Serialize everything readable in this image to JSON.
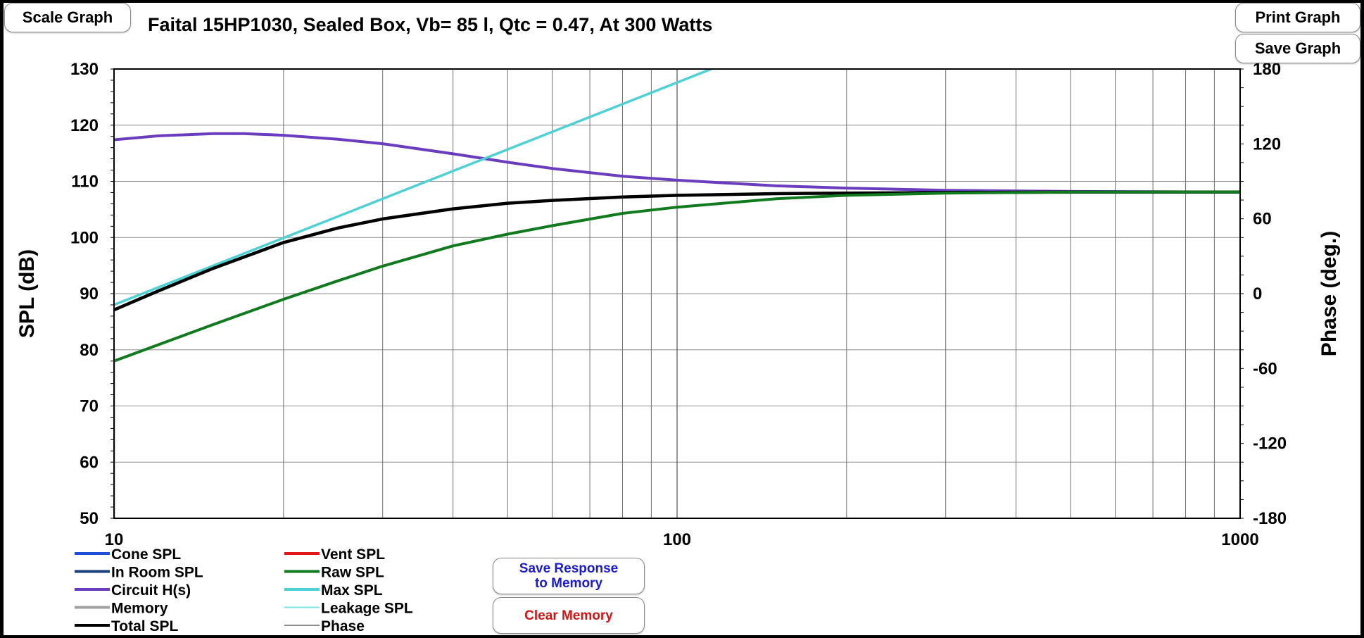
{
  "toolbar": {
    "scale_graph": "Scale Graph",
    "print_graph": "Print Graph",
    "save_graph": "Save Graph",
    "save_response_line1": "Save Response",
    "save_response_line2": "to Memory",
    "clear_memory": "Clear Memory",
    "save_response_color": "#1a1ad0",
    "clear_memory_color": "#d41414"
  },
  "chart_data": {
    "type": "line",
    "title": "Faital 15HP1030,  Sealed Box, Vb= 85 l,  Qtc = 0.47,  At 300 Watts",
    "xlabel": "",
    "ylabel": "SPL (dB)",
    "y2label": "Phase (deg.)",
    "xscale": "log",
    "xlim": [
      10,
      1000
    ],
    "ylim": [
      50,
      130
    ],
    "y2lim": [
      -180,
      180
    ],
    "x_ticks": [
      "10",
      "100",
      "1000"
    ],
    "y_ticks": [
      50,
      60,
      70,
      80,
      90,
      100,
      110,
      120,
      130
    ],
    "y2_ticks": [
      -180,
      -120,
      -60,
      0,
      60,
      120,
      180
    ],
    "grid": true,
    "legend_placement": "bottom-left",
    "legend": [
      {
        "name": "Cone SPL",
        "color": "#1e4fd8"
      },
      {
        "name": "Vent SPL",
        "color": "#e01818"
      },
      {
        "name": "In Room SPL",
        "color": "#1a3f7a"
      },
      {
        "name": "Raw SPL",
        "color": "#117a1f"
      },
      {
        "name": "Circuit H(s)",
        "color": "#6a3dbf"
      },
      {
        "name": "Max SPL",
        "color": "#4fd0d3"
      },
      {
        "name": "Memory",
        "color": "#a0a0a0"
      },
      {
        "name": "Leakage SPL",
        "color": "#7ee3e6"
      },
      {
        "name": "Total SPL",
        "color": "#000000"
      },
      {
        "name": "Phase",
        "color": "#8e8e8e"
      }
    ],
    "series": [
      {
        "name": "Circuit H(s)",
        "color": "#6a3dbf",
        "x": [
          10,
          12,
          15,
          17,
          20,
          25,
          30,
          40,
          50,
          60,
          80,
          100,
          150,
          200,
          300,
          500,
          1000
        ],
        "y": [
          117.4,
          118.1,
          118.5,
          118.5,
          118.2,
          117.5,
          116.7,
          114.9,
          113.4,
          112.3,
          110.9,
          110.2,
          109.2,
          108.8,
          108.4,
          108.2,
          108.1
        ]
      },
      {
        "name": "Max SPL",
        "color": "#4fd0d3",
        "x": [
          10,
          115
        ],
        "y": [
          88.0,
          130.0
        ]
      },
      {
        "name": "Total SPL",
        "color": "#000000",
        "x": [
          10,
          12,
          15,
          20,
          25,
          30,
          40,
          50,
          60,
          80,
          100,
          150,
          200,
          300,
          500,
          1000
        ],
        "y": [
          87.1,
          90.5,
          94.5,
          99.1,
          101.7,
          103.3,
          105.1,
          106.1,
          106.6,
          107.2,
          107.5,
          107.8,
          107.9,
          108.0,
          108.1,
          108.1
        ]
      },
      {
        "name": "Raw SPL",
        "color": "#117a1f",
        "x": [
          10,
          15,
          20,
          25,
          30,
          40,
          50,
          60,
          80,
          100,
          150,
          200,
          300,
          500,
          1000
        ],
        "y": [
          78.0,
          84.5,
          89.0,
          92.3,
          94.9,
          98.5,
          100.6,
          102.1,
          104.3,
          105.4,
          106.9,
          107.5,
          107.9,
          108.1,
          108.1
        ]
      },
      {
        "name": "Memory",
        "color": "#a0a0a0",
        "x": [
          10,
          10
        ],
        "y": [
          50,
          80
        ]
      }
    ]
  }
}
